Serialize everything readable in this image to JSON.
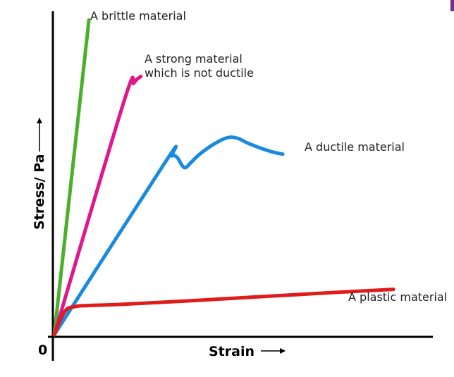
{
  "chart_data": {
    "type": "line",
    "xlabel": "Strain",
    "ylabel": "Stress/ Pa",
    "origin_label": "0",
    "grid": false,
    "legend": "none",
    "series": [
      {
        "name": "A brittle material",
        "color": "#4caf2a",
        "points": [
          [
            0.0,
            0.0
          ],
          [
            0.1,
            0.95
          ]
        ]
      },
      {
        "name": "A strong material which is not ductile",
        "name_lines": [
          "A strong material",
          "which is not ductile"
        ],
        "color": "#e0168c",
        "points": [
          [
            0.0,
            0.0
          ],
          [
            0.2,
            0.7
          ],
          [
            0.23,
            0.76
          ],
          [
            0.25,
            0.78
          ]
        ]
      },
      {
        "name": "A ductile material",
        "color": "#1a8ae0",
        "points": [
          [
            0.0,
            0.0
          ],
          [
            0.32,
            0.52
          ],
          [
            0.34,
            0.54
          ],
          [
            0.355,
            0.535
          ],
          [
            0.37,
            0.51
          ],
          [
            0.38,
            0.505
          ],
          [
            0.395,
            0.52
          ],
          [
            0.42,
            0.545
          ],
          [
            0.46,
            0.575
          ],
          [
            0.5,
            0.595
          ],
          [
            0.53,
            0.593
          ],
          [
            0.56,
            0.578
          ],
          [
            0.62,
            0.555
          ],
          [
            0.66,
            0.545
          ]
        ]
      },
      {
        "name": "A plastic material",
        "color": "#e01b1b",
        "points": [
          [
            0.0,
            0.0
          ],
          [
            0.03,
            0.07
          ],
          [
            0.06,
            0.085
          ],
          [
            0.1,
            0.088
          ],
          [
            0.2,
            0.092
          ],
          [
            0.4,
            0.103
          ],
          [
            0.6,
            0.115
          ],
          [
            0.8,
            0.127
          ],
          [
            0.98,
            0.137
          ]
        ]
      }
    ]
  }
}
